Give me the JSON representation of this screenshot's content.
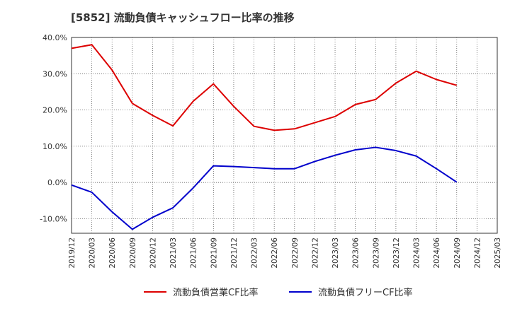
{
  "chart_data": {
    "type": "line",
    "title": "[5852]  流動負債キャッシュフロー比率の推移",
    "xlabel": "",
    "ylabel": "",
    "ylim": [
      -14,
      40
    ],
    "y_ticks": [
      40,
      30,
      20,
      10,
      0,
      -10
    ],
    "y_tick_labels": [
      "40.0%",
      "30.0%",
      "20.0%",
      "10.0%",
      "0.0%",
      "-10.0%"
    ],
    "x": [
      "2019/12",
      "2020/03",
      "2020/06",
      "2020/09",
      "2020/12",
      "2021/03",
      "2021/06",
      "2021/09",
      "2021/12",
      "2022/03",
      "2022/06",
      "2022/09",
      "2022/12",
      "2023/03",
      "2023/06",
      "2023/09",
      "2023/12",
      "2024/03",
      "2024/06",
      "2024/09",
      "2024/12",
      "2025/03"
    ],
    "grid": true,
    "legend_position": "bottom",
    "series": [
      {
        "name": "流動負債営業CF比率",
        "color": "#dd0000",
        "values": [
          37.0,
          38.0,
          31.0,
          21.8,
          18.5,
          15.6,
          22.4,
          27.2,
          21.0,
          15.5,
          14.4,
          14.8,
          16.5,
          18.2,
          21.5,
          22.9,
          27.4,
          30.7,
          28.4,
          26.8,
          null,
          null
        ]
      },
      {
        "name": "流動負債フリーCF比率",
        "color": "#0000cc",
        "values": [
          -0.7,
          -2.7,
          -8.1,
          -12.9,
          -9.6,
          -7.0,
          -1.5,
          4.6,
          4.4,
          4.1,
          3.8,
          3.8,
          5.8,
          7.5,
          9.0,
          9.7,
          8.8,
          7.3,
          3.8,
          0.1,
          null,
          null
        ]
      }
    ]
  }
}
